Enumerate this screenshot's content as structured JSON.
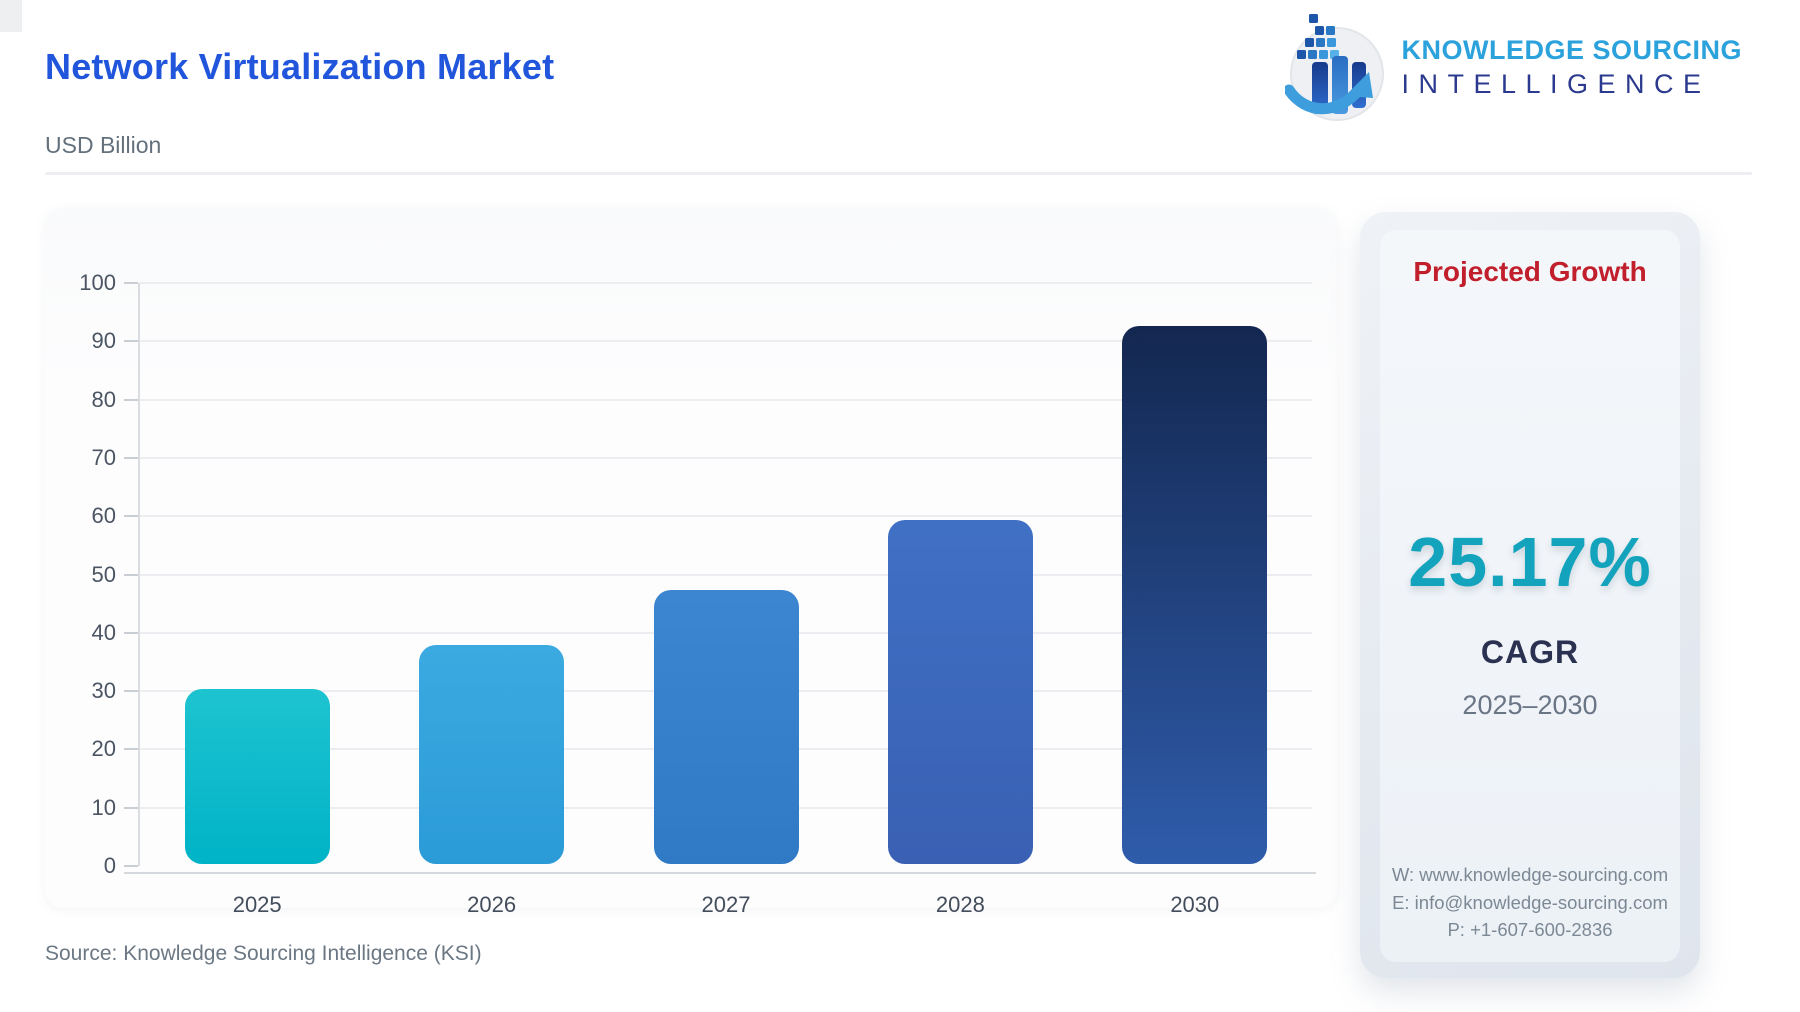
{
  "page": {
    "title": "Network Virtualization Market",
    "subtitle": "USD Billion",
    "source_note": "Source: Knowledge Sourcing Intelligence (KSI)",
    "title_color": "#2155DB"
  },
  "logo": {
    "icon": "ksi-globe-bars-arrow-icon",
    "line1": "KNOWLEDGE SOURCING",
    "line2": "INTELLIGENCE",
    "line1_color": "#2BA2DC",
    "line2_color": "#2B3A8E"
  },
  "chart_data": {
    "type": "bar",
    "title": "Network Virtualization Market",
    "unit": "USD Billion",
    "categories": [
      "2025",
      "2026",
      "2027",
      "2028",
      "2030"
    ],
    "values": [
      30,
      37.5,
      47,
      59,
      92.3
    ],
    "xlabel": "",
    "ylabel": "USD Billion",
    "ylim": [
      0,
      100
    ],
    "ytick_step": 10,
    "grid": true,
    "legend": "none",
    "bar_colors": [
      {
        "top": "#1EC3D0",
        "bottom": "#00B3C7"
      },
      {
        "top": "#3BAAE1",
        "bottom": "#2B9BD8"
      },
      {
        "top": "#3C86D1",
        "bottom": "#2F79C5"
      },
      {
        "top": "#4070C4",
        "bottom": "#3960B3"
      },
      {
        "top": "#132750",
        "bottom": "#2F5CAB"
      }
    ]
  },
  "panel": {
    "title": "Projected Growth",
    "title_color": "#C11F2C",
    "cagr_value": "25.17%",
    "cagr_value_color": "#14A3BC",
    "cagr_label": "CAGR",
    "period": "2025–2030",
    "contact": {
      "website": "W: www.knowledge-sourcing.com",
      "email": "E: info@knowledge-sourcing.com",
      "phone": "P: +1-607-600-2836"
    }
  }
}
